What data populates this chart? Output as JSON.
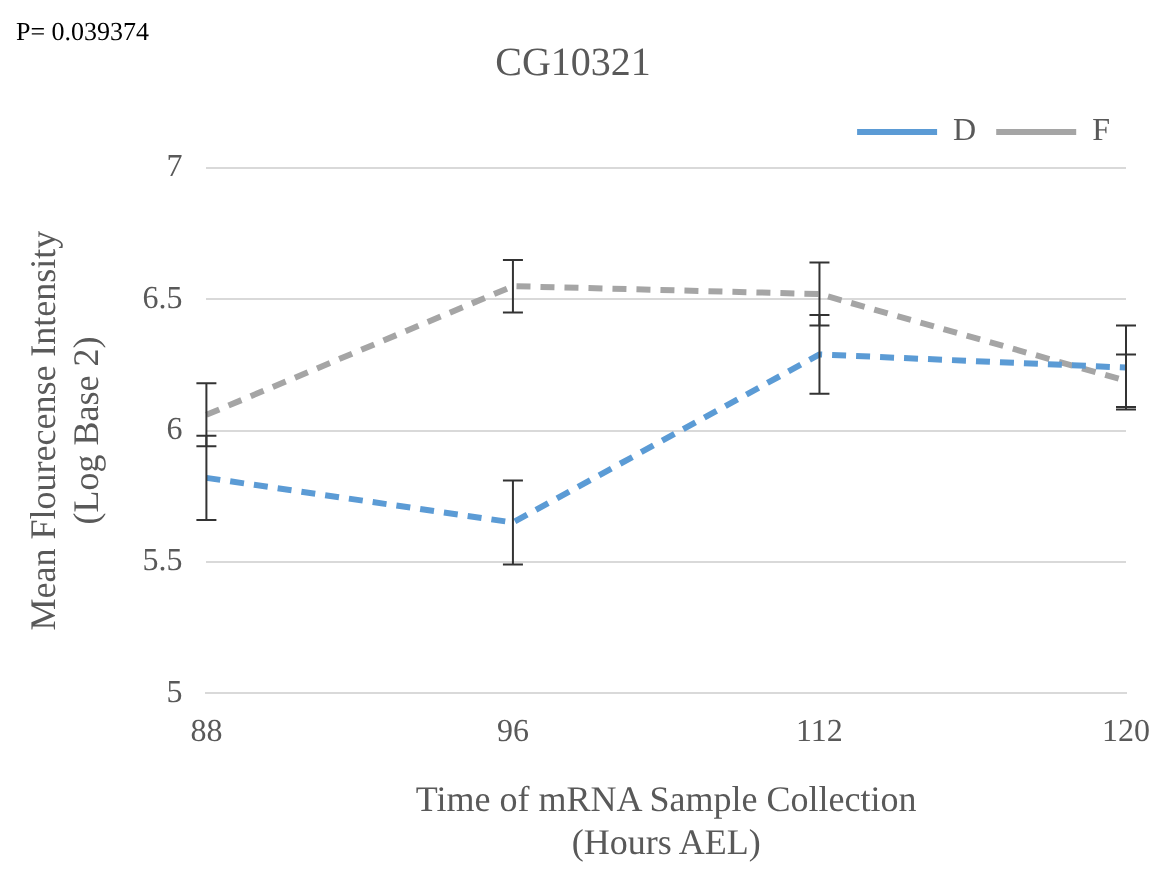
{
  "chart_data": {
    "type": "line",
    "title": "CG10321",
    "xlabel": "Time of mRNA Sample Collection\n(Hours AEL)",
    "ylabel": "Mean Flourecense Intensity\n(Log Base 2)",
    "annotations": [
      "P= 0.039374"
    ],
    "categories": [
      "88",
      "96",
      "112",
      "120"
    ],
    "series": [
      {
        "name": "D",
        "color": "#5b9bd5",
        "values": [
          5.82,
          5.65,
          6.29,
          6.24
        ],
        "errors": [
          0.16,
          0.16,
          0.15,
          0.16
        ]
      },
      {
        "name": "F",
        "color": "#a5a5a5",
        "values": [
          6.06,
          6.55,
          6.52,
          6.19
        ],
        "errors": [
          0.12,
          0.1,
          0.12,
          0.1
        ]
      }
    ],
    "ylim": [
      5,
      7
    ],
    "yticks": [
      5,
      5.5,
      6,
      6.5,
      7
    ],
    "grid": "y",
    "legend": "top right",
    "line_style": "dashed",
    "marker": "none"
  }
}
